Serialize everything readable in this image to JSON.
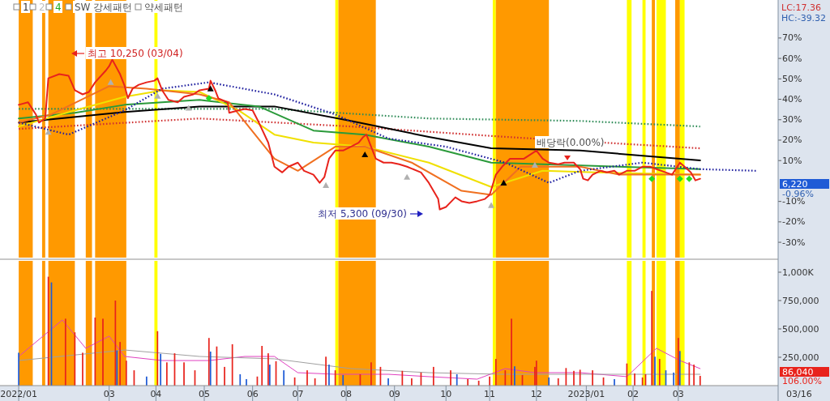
{
  "chart_data": [
    {
      "type": "line",
      "xlim": [
        "2021-12-22",
        "2023-05-05"
      ],
      "ylim": [
        -37.5,
        88.6
      ],
      "tick_labels": "y",
      "yticks": [
        {
          "value": 70,
          "label": "70%"
        },
        {
          "value": 60,
          "label": "60%"
        },
        {
          "value": 50,
          "label": "50%"
        },
        {
          "value": 40,
          "label": "40%"
        },
        {
          "value": 30,
          "label": "30%"
        },
        {
          "value": 20,
          "label": "20%"
        },
        {
          "value": 10,
          "label": "10%"
        },
        {
          "value": -10,
          "label": "-10%"
        },
        {
          "value": -20,
          "label": "-20%"
        },
        {
          "value": -30,
          "label": "-30%"
        }
      ],
      "bands": [
        {
          "axis": "x",
          "from": "2022-01-03",
          "to": "2022-01-12",
          "color": "#ff9900"
        },
        {
          "axis": "x",
          "from": "2022-01-18",
          "to": "2022-01-20",
          "color": "#ff9900"
        },
        {
          "axis": "x",
          "from": "2022-01-22",
          "to": "2022-02-08",
          "color": "#ff9900"
        },
        {
          "axis": "x",
          "from": "2022-02-15",
          "to": "2022-02-19",
          "color": "#ff9900"
        },
        {
          "axis": "x",
          "from": "2022-02-21",
          "to": "2022-03-13",
          "color": "#ff9900"
        },
        {
          "axis": "x",
          "from": "2022-03-31",
          "to": "2022-04-02",
          "color": "#ffff00"
        },
        {
          "axis": "x",
          "from": "2022-07-25",
          "to": "2022-07-27",
          "color": "#ffff00"
        },
        {
          "axis": "x",
          "from": "2022-07-27",
          "to": "2022-08-20",
          "color": "#ff9900"
        },
        {
          "axis": "x",
          "from": "2022-11-03",
          "to": "2022-11-05",
          "color": "#ffff00"
        },
        {
          "axis": "x",
          "from": "2022-11-05",
          "to": "2022-12-09",
          "color": "#ff9900"
        },
        {
          "axis": "x",
          "from": "2023-01-28",
          "to": "2023-01-31",
          "color": "#ffff00"
        },
        {
          "axis": "x",
          "from": "2023-02-07",
          "to": "2023-02-09",
          "color": "#ffff00"
        },
        {
          "axis": "x",
          "from": "2023-02-13",
          "to": "2023-02-15",
          "color": "#ff9900"
        },
        {
          "axis": "x",
          "from": "2023-02-16",
          "to": "2023-02-22",
          "color": "#ffff00"
        },
        {
          "axis": "x",
          "from": "2023-02-28",
          "to": "2023-03-03",
          "color": "#ff9900"
        },
        {
          "axis": "x",
          "from": "2023-03-03",
          "to": "2023-03-06",
          "color": "#ffff00"
        }
      ],
      "series": [
        {
          "color": "#2e8b57",
          "line_style": "dotted",
          "x": [
            "2022-01-03",
            "2022-06-16",
            "2022-09-23",
            "2022-12-29",
            "2023-03-16"
          ],
          "values": [
            35.3,
            35.3,
            30.6,
            29.4,
            26.7
          ]
        },
        {
          "color": "#d03030",
          "line_style": "dotted",
          "x": [
            "2022-01-03",
            "2022-04-29",
            "2022-08-04",
            "2022-11-11",
            "2023-03-16"
          ],
          "values": [
            25.5,
            30.6,
            26.7,
            21.6,
            16.0
          ]
        },
        {
          "color": "#000000",
          "x": [
            "2022-01-03",
            "2022-03-12",
            "2022-04-29",
            "2022-06-16",
            "2022-08-04",
            "2022-09-23",
            "2022-11-02",
            "2022-12-29",
            "2023-03-16"
          ],
          "values": [
            28.6,
            33.8,
            36.5,
            36.5,
            29.4,
            21.6,
            16.0,
            14.9,
            10.1
          ]
        },
        {
          "color": "#2a9a3a",
          "x": [
            "2022-01-03",
            "2022-02-08",
            "2022-03-12",
            "2022-04-29",
            "2022-06-06",
            "2022-07-11",
            "2022-08-13",
            "2022-09-23",
            "2022-11-02",
            "2022-12-05",
            "2023-03-16"
          ],
          "values": [
            30.6,
            33.4,
            37.3,
            39.7,
            36.5,
            24.7,
            22.7,
            16.8,
            9.0,
            8.2,
            5.8
          ]
        },
        {
          "color": "#f0e000",
          "x": [
            "2022-01-03",
            "2022-02-08",
            "2022-03-12",
            "2022-04-05",
            "2022-04-29",
            "2022-05-24",
            "2022-06-16",
            "2022-07-11",
            "2022-08-13",
            "2022-09-23",
            "2022-11-02",
            "2022-12-05",
            "2023-01-08",
            "2023-03-16"
          ],
          "values": [
            26.7,
            34.6,
            41.2,
            44.4,
            43.6,
            34.6,
            22.7,
            18.8,
            16.8,
            9.0,
            -2.9,
            5.0,
            4.2,
            3.1
          ]
        },
        {
          "color": "#f07020",
          "x": [
            "2022-01-03",
            "2022-01-24",
            "2022-03-02",
            "2022-03-26",
            "2022-04-29",
            "2022-05-18",
            "2022-06-16",
            "2022-07-01",
            "2022-07-25",
            "2022-08-13",
            "2022-09-12",
            "2022-10-14",
            "2022-11-02",
            "2022-11-21",
            "2022-12-29",
            "2023-01-23",
            "2023-03-16"
          ],
          "values": [
            28.6,
            32.6,
            46.4,
            45.2,
            42.4,
            38.5,
            10.9,
            5.0,
            16.8,
            16.8,
            9.0,
            -4.8,
            -6.8,
            7.0,
            7.0,
            3.1,
            3.1
          ]
        },
        {
          "color": "#2020a0",
          "line_style": "dotted",
          "x": [
            "2022-01-03",
            "2022-02-04",
            "2022-03-12",
            "2022-04-05",
            "2022-05-05",
            "2022-06-16",
            "2022-07-25",
            "2022-08-28",
            "2022-10-04",
            "2022-11-11",
            "2022-12-09",
            "2022-12-29",
            "2023-02-07",
            "2023-03-16",
            "2023-04-21"
          ],
          "values": [
            28.6,
            22.7,
            34.6,
            45.2,
            48.3,
            42.4,
            32.6,
            20.8,
            16.8,
            9.0,
            -0.9,
            5.0,
            9.0,
            5.8,
            5.0
          ]
        },
        {
          "color": "#e8231c",
          "x": [
            "2022-01-03",
            "2022-01-09",
            "2022-01-14",
            "2022-01-16",
            "2022-01-20",
            "2022-01-22",
            "2022-01-29",
            "2022-02-04",
            "2022-02-08",
            "2022-02-13",
            "2022-02-17",
            "2022-02-21",
            "2022-02-28",
            "2022-03-02",
            "2022-03-04",
            "2022-03-09",
            "2022-03-12",
            "2022-03-14",
            "2022-03-17",
            "2022-03-21",
            "2022-03-26",
            "2022-03-31",
            "2022-04-02",
            "2022-04-05",
            "2022-04-09",
            "2022-04-15",
            "2022-04-19",
            "2022-04-25",
            "2022-04-29",
            "2022-05-05",
            "2022-05-06",
            "2022-05-09",
            "2022-05-11",
            "2022-05-17",
            "2022-05-18",
            "2022-05-24",
            "2022-05-28",
            "2022-06-02",
            "2022-06-06",
            "2022-06-12",
            "2022-06-16",
            "2022-06-21",
            "2022-06-25",
            "2022-07-01",
            "2022-07-05",
            "2022-07-11",
            "2022-07-15",
            "2022-07-18",
            "2022-07-21",
            "2022-07-25",
            "2022-07-30",
            "2022-08-04",
            "2022-08-09",
            "2022-08-12",
            "2022-08-14",
            "2022-08-17",
            "2022-08-20",
            "2022-08-25",
            "2022-08-30",
            "2022-09-04",
            "2022-09-09",
            "2022-09-18",
            "2022-09-23",
            "2022-09-29",
            "2022-09-30",
            "2022-10-04",
            "2022-10-10",
            "2022-10-14",
            "2022-10-19",
            "2022-10-24",
            "2022-10-29",
            "2022-11-01",
            "2022-11-05",
            "2022-11-09",
            "2022-11-14",
            "2022-11-18",
            "2022-11-23",
            "2022-11-27",
            "2022-12-01",
            "2022-12-05",
            "2022-12-09",
            "2022-12-15",
            "2022-12-19",
            "2022-12-25",
            "2022-12-29",
            "2022-12-31",
            "2023-01-03",
            "2023-01-06",
            "2023-01-11",
            "2023-01-15",
            "2023-01-20",
            "2023-01-23",
            "2023-01-28",
            "2023-02-02",
            "2023-02-07",
            "2023-02-12",
            "2023-02-16",
            "2023-02-22",
            "2023-02-26",
            "2023-03-03",
            "2023-03-06",
            "2023-03-10",
            "2023-03-13",
            "2023-03-16"
          ],
          "values": [
            37.3,
            38.5,
            32.6,
            28.6,
            30.6,
            50.3,
            52.3,
            51.5,
            44.4,
            42.4,
            43.6,
            48.3,
            54.2,
            56.2,
            59.4,
            52.3,
            46.4,
            40.5,
            45.2,
            47.1,
            48.3,
            49.1,
            50.3,
            44.4,
            39.7,
            38.5,
            41.2,
            42.4,
            44.4,
            45.2,
            49.1,
            44.4,
            40.5,
            38.5,
            33.4,
            34.6,
            35.3,
            34.6,
            28.6,
            18.8,
            7.0,
            4.2,
            7.0,
            9.0,
            5.0,
            3.1,
            -0.9,
            1.9,
            10.9,
            14.9,
            14.9,
            16.8,
            18.8,
            21.6,
            22.7,
            16.8,
            10.9,
            9.0,
            9.0,
            8.2,
            7.0,
            4.2,
            -0.9,
            -8.8,
            -13.9,
            -12.7,
            -8.0,
            -9.9,
            -10.7,
            -9.9,
            -8.8,
            -6.8,
            3.1,
            7.0,
            10.9,
            10.9,
            10.9,
            12.9,
            14.9,
            10.9,
            9.0,
            8.2,
            9.0,
            9.0,
            5.8,
            1.1,
            0.3,
            3.1,
            5.0,
            4.2,
            5.0,
            3.1,
            5.0,
            5.0,
            7.0,
            7.0,
            5.8,
            4.2,
            3.1,
            9.0,
            7.0,
            4.2,
            0.3,
            1.1
          ]
        },
        {
          "type": "scatter",
          "marker": "triangle",
          "color": "#000000",
          "x": [
            "2022-05-06",
            "2022-08-13",
            "2022-11-10"
          ],
          "values": [
            45.2,
            12.9,
            -0.9
          ]
        },
        {
          "type": "scatter",
          "marker": "triangle",
          "color": "#b0b0b0",
          "x": [
            "2022-01-22",
            "2022-03-03",
            "2022-04-02",
            "2022-04-22",
            "2022-07-19",
            "2022-09-09",
            "2022-11-02",
            "2022-11-30"
          ],
          "values": [
            23.9,
            48.3,
            41.6,
            35.7,
            -2.1,
            1.9,
            -11.9,
            7.8
          ]
        },
        {
          "type": "scatter",
          "marker": "diamond",
          "color": "#22dd22",
          "x": [
            "2022-05-05",
            "2023-02-13",
            "2023-03-03",
            "2023-03-09"
          ],
          "values": [
            40.5,
            1.1,
            1.1,
            1.1
          ]
        }
      ],
      "annotations": [
        "최고 10,250 (03/04)",
        "최저 5,300 (09/30)",
        "배당락(0.00%)",
        "1",
        "2",
        "4",
        "SW 강세패턴",
        "약세패턴",
        "LC:17.36",
        "HC:-39.32",
        "6,220",
        "-0.96%"
      ]
    },
    {
      "type": "bar",
      "xlim": [
        "2021-12-22",
        "2023-05-05"
      ],
      "ylim": [
        0,
        1100000
      ],
      "xticks": [
        {
          "value": "2022-01-03",
          "label": "2022/01"
        },
        {
          "value": "2022-03-02",
          "label": "03"
        },
        {
          "value": "2022-04-01",
          "label": "04"
        },
        {
          "value": "2022-05-02",
          "label": "05"
        },
        {
          "value": "2022-06-02",
          "label": "06"
        },
        {
          "value": "2022-07-01",
          "label": "07"
        },
        {
          "value": "2022-08-01",
          "label": "08"
        },
        {
          "value": "2022-09-01",
          "label": "09"
        },
        {
          "value": "2022-10-04",
          "label": "10"
        },
        {
          "value": "2022-11-01",
          "label": "11"
        },
        {
          "value": "2022-12-01",
          "label": "12"
        },
        {
          "value": "2023-01-02",
          "label": "2023/01"
        },
        {
          "value": "2023-02-01",
          "label": "02"
        },
        {
          "value": "2023-03-02",
          "label": "03"
        }
      ],
      "yticks": [
        {
          "value": 1000000,
          "label": "1,000K"
        },
        {
          "value": 750000,
          "label": "750,000"
        },
        {
          "value": 500000,
          "label": "500,000"
        },
        {
          "value": 250000,
          "label": "250,000"
        }
      ],
      "bands": [
        {
          "axis": "x",
          "from": "2022-01-03",
          "to": "2022-01-12",
          "color": "#ff9900"
        },
        {
          "axis": "x",
          "from": "2022-01-18",
          "to": "2022-01-20",
          "color": "#ff9900"
        },
        {
          "axis": "x",
          "from": "2022-01-22",
          "to": "2022-02-08",
          "color": "#ff9900"
        },
        {
          "axis": "x",
          "from": "2022-02-15",
          "to": "2022-02-19",
          "color": "#ff9900"
        },
        {
          "axis": "x",
          "from": "2022-02-21",
          "to": "2022-03-13",
          "color": "#ff9900"
        },
        {
          "axis": "x",
          "from": "2022-03-31",
          "to": "2022-04-02",
          "color": "#ffff00"
        },
        {
          "axis": "x",
          "from": "2022-07-25",
          "to": "2022-07-27",
          "color": "#ffff00"
        },
        {
          "axis": "x",
          "from": "2022-07-27",
          "to": "2022-08-20",
          "color": "#ff9900"
        },
        {
          "axis": "x",
          "from": "2022-11-03",
          "to": "2022-11-05",
          "color": "#ffff00"
        },
        {
          "axis": "x",
          "from": "2022-11-05",
          "to": "2022-12-09",
          "color": "#ff9900"
        },
        {
          "axis": "x",
          "from": "2023-01-28",
          "to": "2023-01-31",
          "color": "#ffff00"
        },
        {
          "axis": "x",
          "from": "2023-02-07",
          "to": "2023-02-09",
          "color": "#ffff00"
        },
        {
          "axis": "x",
          "from": "2023-02-13",
          "to": "2023-02-15",
          "color": "#ff9900"
        },
        {
          "axis": "x",
          "from": "2023-02-16",
          "to": "2023-02-22",
          "color": "#ffff00"
        },
        {
          "axis": "x",
          "from": "2023-02-28",
          "to": "2023-03-03",
          "color": "#ff9900"
        },
        {
          "axis": "x",
          "from": "2023-03-03",
          "to": "2023-03-06",
          "color": "#ffff00"
        }
      ],
      "series": [
        {
          "x": [
            "2022-01-03",
            "2022-01-22",
            "2022-01-24",
            "2022-02-02",
            "2022-02-08",
            "2022-02-13",
            "2022-02-21",
            "2022-02-26",
            "2022-03-06",
            "2022-03-07",
            "2022-03-09",
            "2022-03-13",
            "2022-03-18",
            "2022-03-26",
            "2022-04-02",
            "2022-04-04",
            "2022-04-08",
            "2022-04-13",
            "2022-04-19",
            "2022-04-26",
            "2022-05-05",
            "2022-05-06",
            "2022-05-10",
            "2022-05-15",
            "2022-05-20",
            "2022-05-25",
            "2022-05-29",
            "2022-06-05",
            "2022-06-08",
            "2022-06-12",
            "2022-06-13",
            "2022-06-17",
            "2022-06-22",
            "2022-06-29",
            "2022-07-07",
            "2022-07-12",
            "2022-07-19",
            "2022-07-21",
            "2022-07-25",
            "2022-07-30",
            "2022-08-10",
            "2022-08-17",
            "2022-08-23",
            "2022-08-28",
            "2022-09-06",
            "2022-09-12",
            "2022-09-18",
            "2022-09-26",
            "2022-10-07",
            "2022-10-11",
            "2022-10-18",
            "2022-10-25",
            "2022-11-01",
            "2022-11-05",
            "2022-11-11",
            "2022-11-15",
            "2022-11-17",
            "2022-11-22",
            "2022-11-30",
            "2022-12-01",
            "2022-12-09",
            "2022-12-15",
            "2022-12-20",
            "2022-12-25",
            "2022-12-29",
            "2023-01-06",
            "2023-01-13",
            "2023-01-20",
            "2023-01-28",
            "2023-02-02",
            "2023-02-07",
            "2023-02-09",
            "2023-02-13",
            "2023-02-15",
            "2023-02-18",
            "2023-02-22",
            "2023-02-27",
            "2023-03-02",
            "2023-03-03",
            "2023-03-09",
            "2023-03-12",
            "2023-03-16"
          ],
          "values": [
            290000,
            960000,
            910000,
            590000,
            470000,
            290000,
            600000,
            590000,
            750000,
            310000,
            385000,
            220000,
            135000,
            80000,
            480000,
            280000,
            205000,
            285000,
            205000,
            135000,
            420000,
            300000,
            345000,
            165000,
            365000,
            100000,
            57000,
            80000,
            350000,
            285000,
            185000,
            215000,
            135000,
            72000,
            135000,
            64000,
            255000,
            185000,
            135000,
            93000,
            100000,
            205000,
            165000,
            64000,
            130000,
            64000,
            115000,
            165000,
            135000,
            100000,
            57000,
            43000,
            80000,
            235000,
            135000,
            590000,
            170000,
            93000,
            165000,
            220000,
            72000,
            64000,
            155000,
            130000,
            140000,
            135000,
            72000,
            57000,
            195000,
            107000,
            72000,
            100000,
            835000,
            255000,
            235000,
            135000,
            115000,
            420000,
            305000,
            205000,
            185000,
            86040
          ],
          "colors": [
            "#1f5bd6",
            "#e8231c",
            "#1f5bd6",
            "#e8231c",
            "#e8231c",
            "#e8231c",
            "#e8231c",
            "#e8231c",
            "#e8231c",
            "#1f5bd6",
            "#e8231c",
            "#e8231c",
            "#e8231c",
            "#1f5bd6",
            "#e8231c",
            "#1f5bd6",
            "#e8231c",
            "#e8231c",
            "#e8231c",
            "#e8231c",
            "#e8231c",
            "#1f5bd6",
            "#e8231c",
            "#e8231c",
            "#e8231c",
            "#1f5bd6",
            "#1f5bd6",
            "#e8231c",
            "#e8231c",
            "#e8231c",
            "#1f5bd6",
            "#e8231c",
            "#1f5bd6",
            "#e8231c",
            "#e8231c",
            "#e8231c",
            "#e8231c",
            "#1f5bd6",
            "#e8231c",
            "#1f5bd6",
            "#e8231c",
            "#e8231c",
            "#e8231c",
            "#1f5bd6",
            "#e8231c",
            "#e8231c",
            "#e8231c",
            "#e8231c",
            "#e8231c",
            "#1f5bd6",
            "#e8231c",
            "#e8231c",
            "#e8231c",
            "#e8231c",
            "#e8231c",
            "#e8231c",
            "#1f5bd6",
            "#e8231c",
            "#e8231c",
            "#e8231c",
            "#1f5bd6",
            "#e8231c",
            "#e8231c",
            "#e8231c",
            "#e8231c",
            "#e8231c",
            "#e8231c",
            "#1f5bd6",
            "#e8231c",
            "#e8231c",
            "#e8231c",
            "#e8231c",
            "#e8231c",
            "#1f5bd6",
            "#e8231c",
            "#1f5bd6",
            "#1f5bd6",
            "#e8231c",
            "#1f5bd6",
            "#e8231c",
            "#e8231c",
            "#e8231c"
          ]
        },
        {
          "type": "line",
          "color": "#e040c0",
          "x": [
            "2022-01-03",
            "2022-01-31",
            "2022-02-15",
            "2022-03-02",
            "2022-03-12",
            "2022-04-05",
            "2022-05-05",
            "2022-05-28",
            "2022-06-16",
            "2022-07-01",
            "2022-07-25",
            "2022-08-28",
            "2022-09-23",
            "2022-10-24",
            "2022-11-11",
            "2022-11-30",
            "2022-12-29",
            "2023-01-28",
            "2023-02-16",
            "2023-03-03",
            "2023-03-16"
          ],
          "values": [
            257000,
            579000,
            329000,
            436000,
            257000,
            221000,
            221000,
            257000,
            257000,
            114000,
            100000,
            100000,
            79000,
            57000,
            150000,
            114000,
            114000,
            79000,
            329000,
            221000,
            150000
          ]
        },
        {
          "type": "line",
          "color": "#a0a0a0",
          "x": [
            "2022-01-03",
            "2022-03-12",
            "2022-04-29",
            "2022-06-16",
            "2022-08-04",
            "2022-09-23",
            "2022-11-08",
            "2022-12-29",
            "2023-03-16"
          ],
          "values": [
            221000,
            314000,
            257000,
            236000,
            150000,
            114000,
            100000,
            100000,
            100000
          ]
        }
      ],
      "annotations": [
        "86,040",
        "106.00%",
        "03/16"
      ]
    }
  ]
}
